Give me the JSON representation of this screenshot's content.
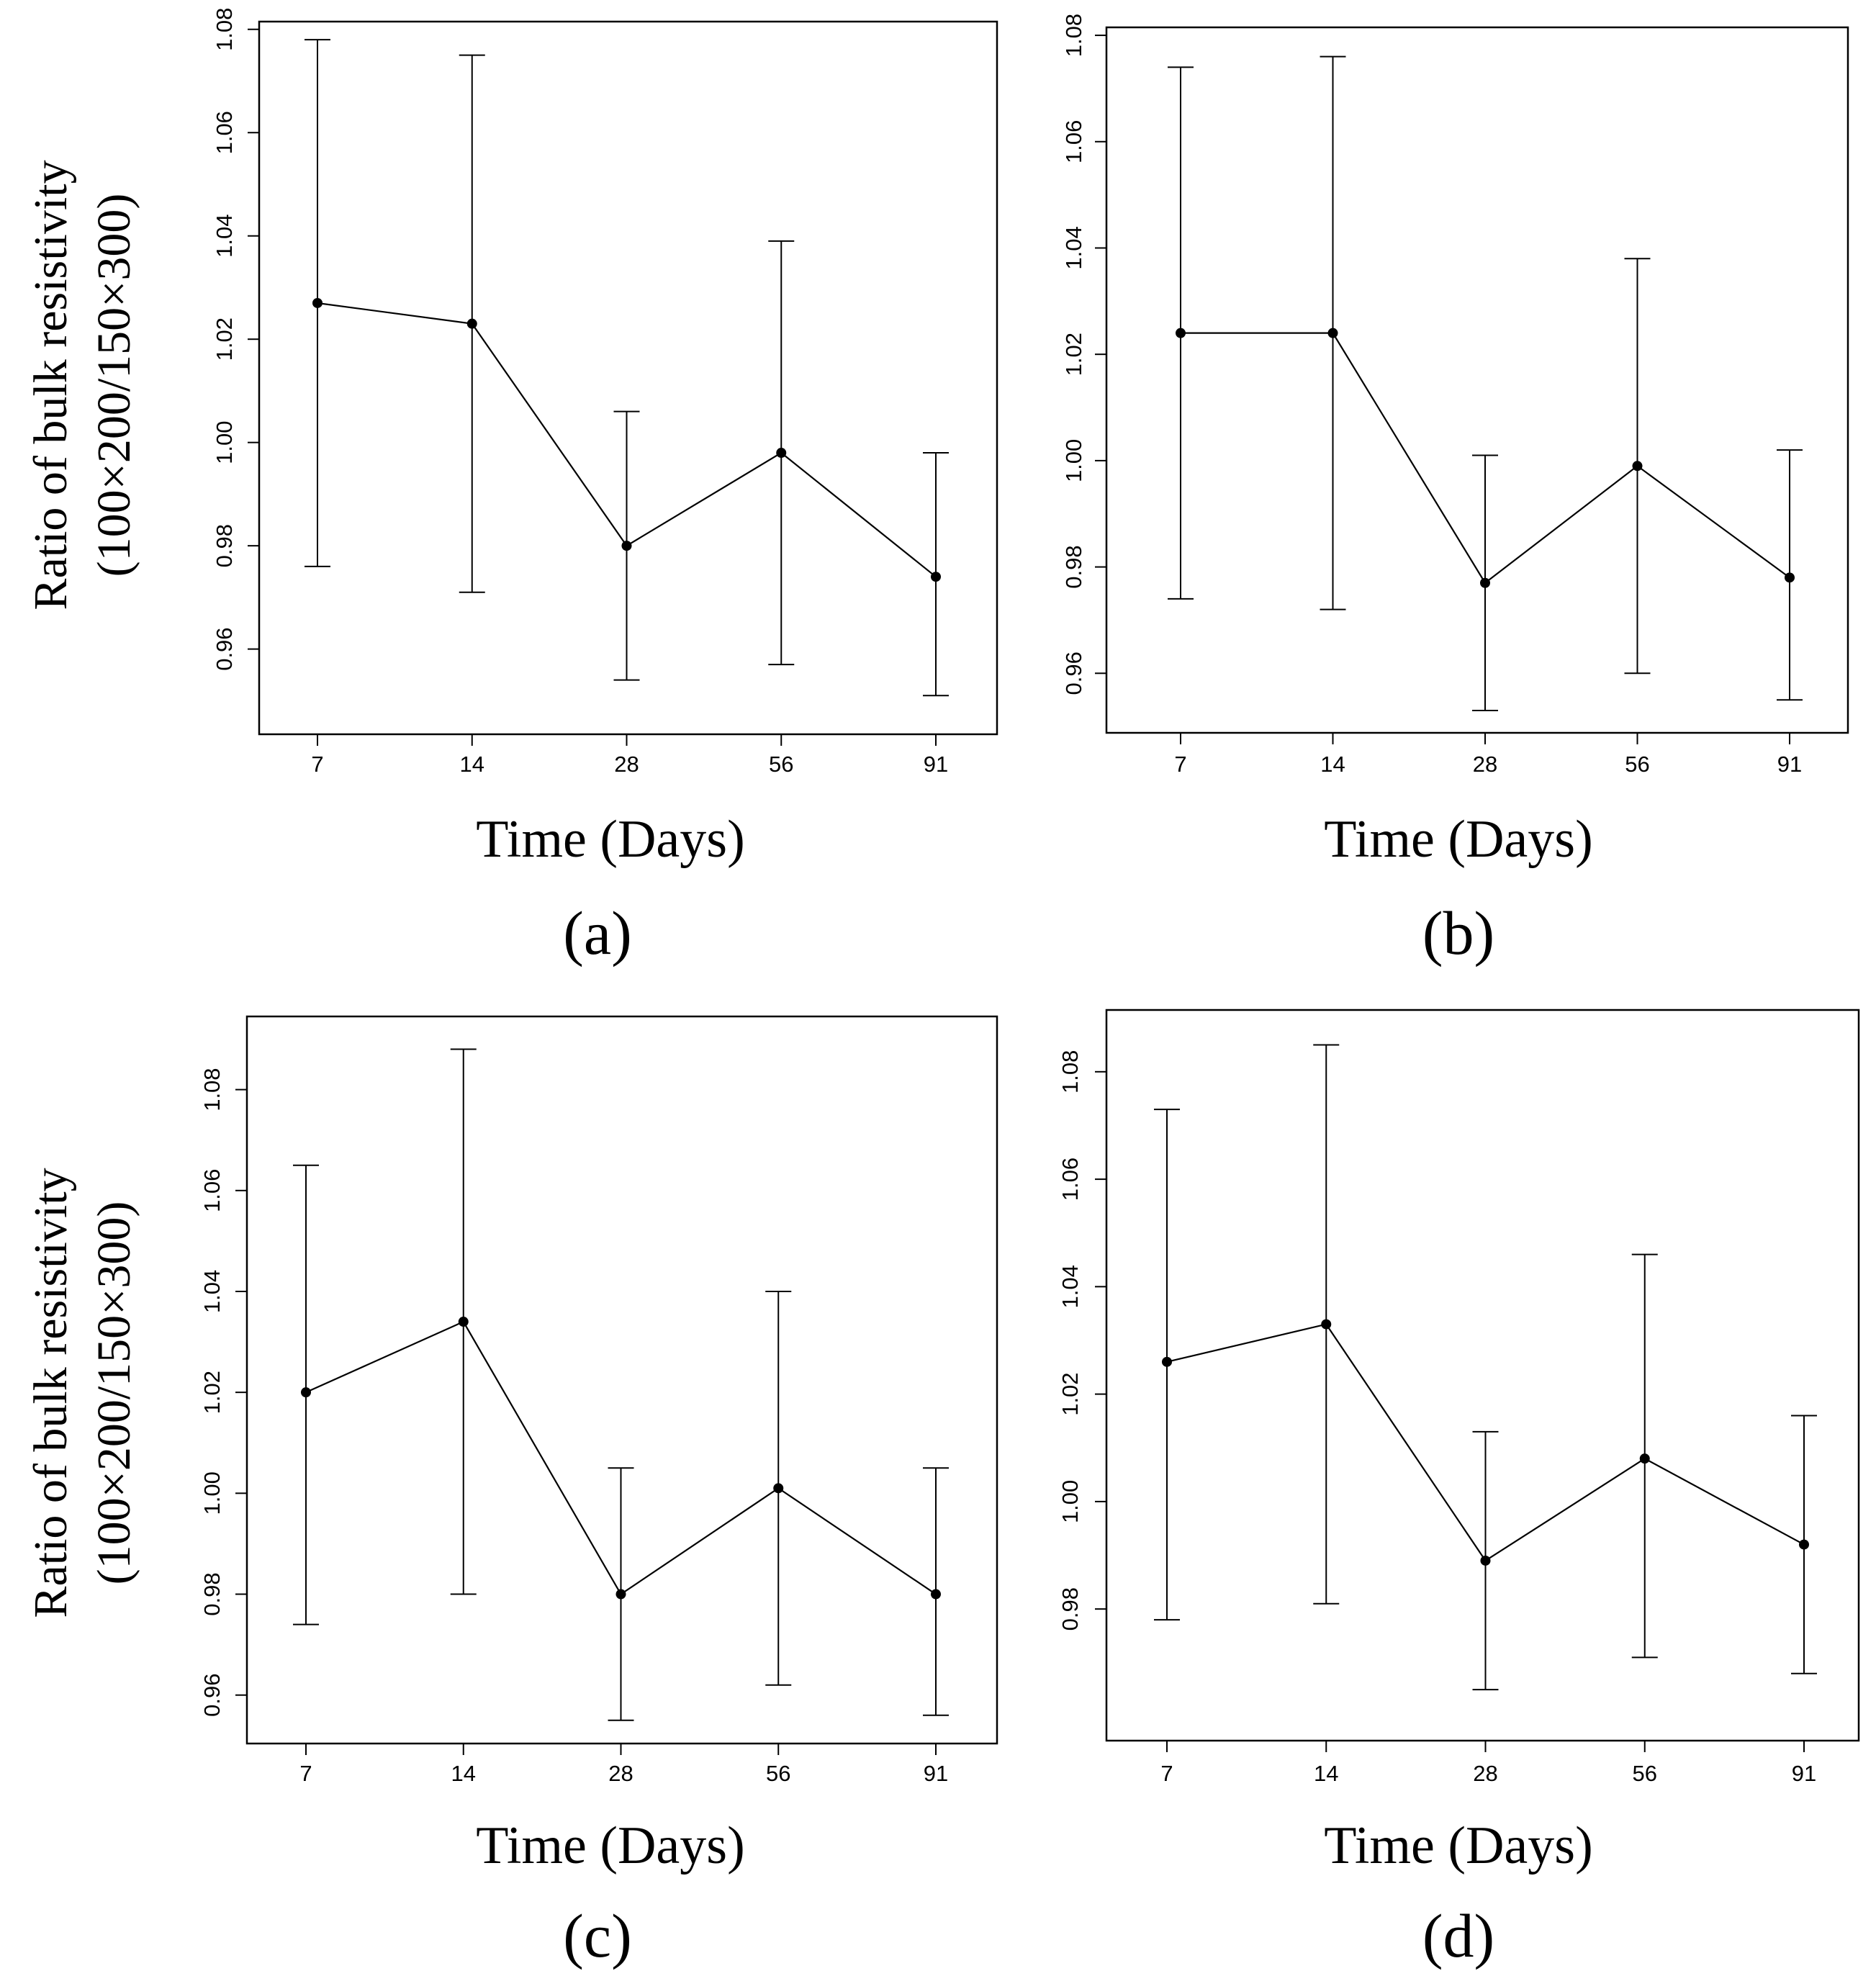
{
  "figure": {
    "y_axis_label_line1": "Ratio of bulk resistivity",
    "y_axis_label_line2": "(100×200/150×300)",
    "x_axis_label": "Time (Days)",
    "line_color": "#000000"
  },
  "chart_data": [
    {
      "type": "line",
      "panel": "(a)",
      "title": "",
      "xlabel": "Time (Days)",
      "ylabel": "Ratio of bulk resistivity (100×200/150×300)",
      "categories": [
        "7",
        "14",
        "28",
        "56",
        "91"
      ],
      "values": [
        1.027,
        1.023,
        0.98,
        0.998,
        0.974
      ],
      "error_low": [
        0.976,
        0.971,
        0.954,
        0.957,
        0.951
      ],
      "error_high": [
        1.078,
        1.075,
        1.006,
        1.039,
        0.998
      ],
      "ylim": [
        0.9435,
        1.0815
      ],
      "yticks": [
        "0.96",
        "0.98",
        "1.00",
        "1.02",
        "1.04",
        "1.06",
        "1.08"
      ]
    },
    {
      "type": "line",
      "panel": "(b)",
      "title": "",
      "xlabel": "Time (Days)",
      "ylabel": "",
      "categories": [
        "7",
        "14",
        "28",
        "56",
        "91"
      ],
      "values": [
        1.024,
        1.024,
        0.977,
        0.999,
        0.978
      ],
      "error_low": [
        0.974,
        0.972,
        0.953,
        0.96,
        0.955
      ],
      "error_high": [
        1.074,
        1.076,
        1.001,
        1.038,
        1.002
      ],
      "ylim": [
        0.9488,
        1.0815
      ],
      "yticks": [
        "0.96",
        "0.98",
        "1.00",
        "1.02",
        "1.04",
        "1.06",
        "1.08"
      ]
    },
    {
      "type": "line",
      "panel": "(c)",
      "title": "",
      "xlabel": "Time (Days)",
      "ylabel": "Ratio of bulk resistivity (100×200/150×300)",
      "categories": [
        "7",
        "14",
        "28",
        "56",
        "91"
      ],
      "values": [
        1.02,
        1.034,
        0.98,
        1.001,
        0.98
      ],
      "error_low": [
        0.974,
        0.98,
        0.955,
        0.962,
        0.956
      ],
      "error_high": [
        1.065,
        1.088,
        1.005,
        1.04,
        1.005
      ],
      "ylim": [
        0.9504,
        1.0945
      ],
      "yticks": [
        "0.96",
        "0.98",
        "1.00",
        "1.02",
        "1.04",
        "1.06",
        "1.08"
      ]
    },
    {
      "type": "line",
      "panel": "(d)",
      "title": "",
      "xlabel": "Time (Days)",
      "ylabel": "",
      "categories": [
        "7",
        "14",
        "28",
        "56",
        "91"
      ],
      "values": [
        1.026,
        1.033,
        0.989,
        1.008,
        0.992
      ],
      "error_low": [
        0.978,
        0.981,
        0.965,
        0.971,
        0.968
      ],
      "error_high": [
        1.073,
        1.085,
        1.013,
        1.046,
        1.016
      ],
      "ylim": [
        0.9555,
        1.0915
      ],
      "yticks": [
        "0.98",
        "1.00",
        "1.02",
        "1.04",
        "1.06",
        "1.08"
      ]
    }
  ]
}
